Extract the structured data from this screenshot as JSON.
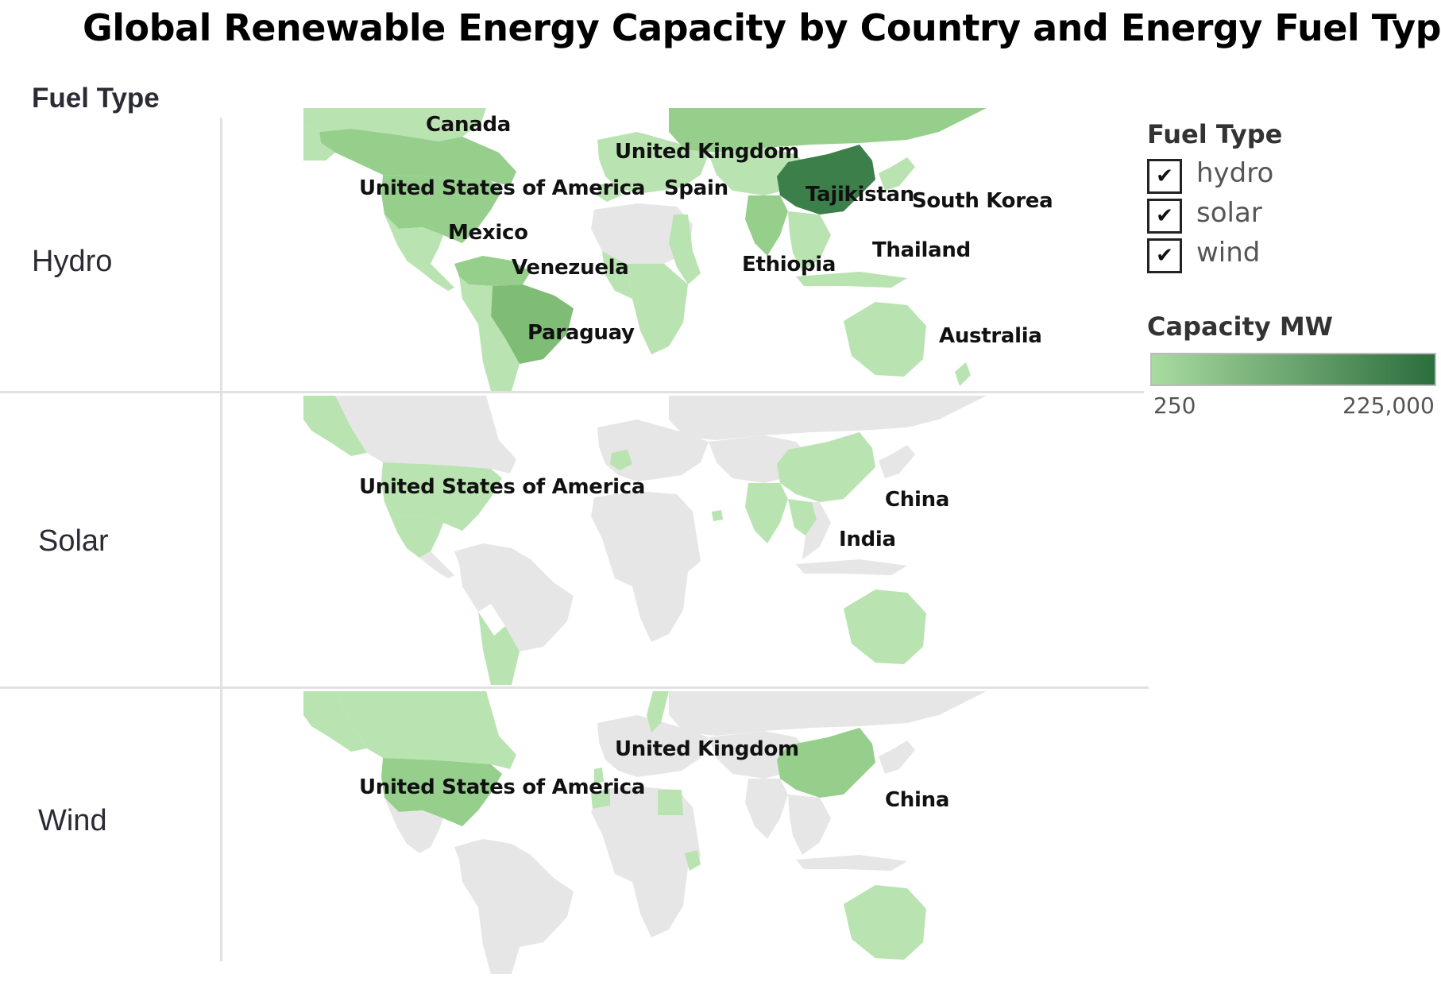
{
  "title": "Global Renewable Energy Capacity by Country and Energy Fuel Type",
  "row_header": "Fuel Type",
  "rows": [
    {
      "label": "Hydro",
      "countries": [
        "Canada",
        "United Kingdom",
        "United States of America",
        "Spain",
        "Tajikistan",
        "South Korea",
        "Mexico",
        "Thailand",
        "Venezuela",
        "Ethiopia",
        "Paraguay",
        "Australia"
      ]
    },
    {
      "label": "Solar",
      "countries": [
        "United States of America",
        "China",
        "India"
      ]
    },
    {
      "label": "Wind",
      "countries": [
        "United Kingdom",
        "United States of America",
        "China"
      ]
    }
  ],
  "legend": {
    "filter_title": "Fuel Type",
    "fuel_types": [
      {
        "label": "hydro",
        "checked": true
      },
      {
        "label": "solar",
        "checked": true
      },
      {
        "label": "wind",
        "checked": true
      }
    ],
    "check_glyph": "✔",
    "color_title": "Capacity MW",
    "scale_min": "250",
    "scale_max": "225,000",
    "color_low": "#a8dba0",
    "color_high": "#2c6e3d"
  },
  "colors": {
    "no_data": "#e6e6e6",
    "light": "#b9e3b1",
    "mid": "#96cf8c",
    "darker": "#7fbd76",
    "darkest": "#3c7f4b"
  }
}
